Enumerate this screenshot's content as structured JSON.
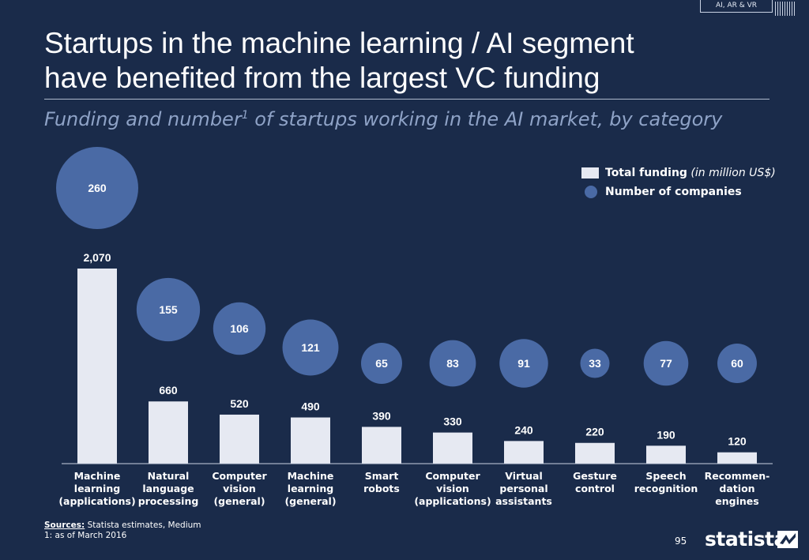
{
  "header": {
    "tag": "AI, AR & VR",
    "title_line1": "Startups in the machine learning / AI segment",
    "title_line2": "have benefited from the largest VC funding",
    "subtitle_main": "Funding and number",
    "subtitle_sup": "1",
    "subtitle_rest": " of startups working in the AI market, by category"
  },
  "legend": {
    "funding_label": "Total funding",
    "funding_unit": " (in million US$)",
    "companies_label": "Number of companies"
  },
  "colors": {
    "background": "#1a2b4a",
    "bar": "#e6e9f2",
    "bubble": "#4a6aa5",
    "subtitle": "#8fa3c7"
  },
  "chart_data": {
    "type": "bar",
    "title": "Funding and number of startups working in the AI market, by category",
    "categories": [
      "Machine learning (applications)",
      "Natural language processing",
      "Computer vision (general)",
      "Machine learning (general)",
      "Smart robots",
      "Computer vision (applications)",
      "Virtual personal assistants",
      "Gesture control",
      "Speech recognition",
      "Recommen-dation engines"
    ],
    "category_lines": [
      [
        "Machine",
        "learning",
        "(applications)"
      ],
      [
        "Natural",
        "language",
        "processing"
      ],
      [
        "Computer",
        "vision",
        "(general)"
      ],
      [
        "Machine",
        "learning",
        "(general)"
      ],
      [
        "Smart",
        "robots"
      ],
      [
        "Computer",
        "vision",
        "(applications)"
      ],
      [
        "Virtual",
        "personal",
        "assistants"
      ],
      [
        "Gesture",
        "control"
      ],
      [
        "Speech",
        "recognition"
      ],
      [
        "Recommen-",
        "dation",
        "engines"
      ]
    ],
    "series": [
      {
        "name": "Total funding (in million US$)",
        "type": "bar",
        "values": [
          2070,
          660,
          520,
          490,
          390,
          330,
          240,
          220,
          190,
          120
        ],
        "labels": [
          "2,070",
          "660",
          "520",
          "490",
          "390",
          "330",
          "240",
          "220",
          "190",
          "120"
        ]
      },
      {
        "name": "Number of companies",
        "type": "bubble",
        "values": [
          260,
          155,
          106,
          121,
          65,
          83,
          91,
          33,
          77,
          60
        ]
      }
    ],
    "ylim": [
      0,
      2070
    ],
    "xlabel": "",
    "ylabel": "",
    "grid": false,
    "legend": "top-right"
  },
  "footer": {
    "sources_label": "Sources:",
    "sources_text": " Statista estimates, Medium",
    "note": "1: as of March 2016",
    "page": "95",
    "logo": "statista"
  }
}
